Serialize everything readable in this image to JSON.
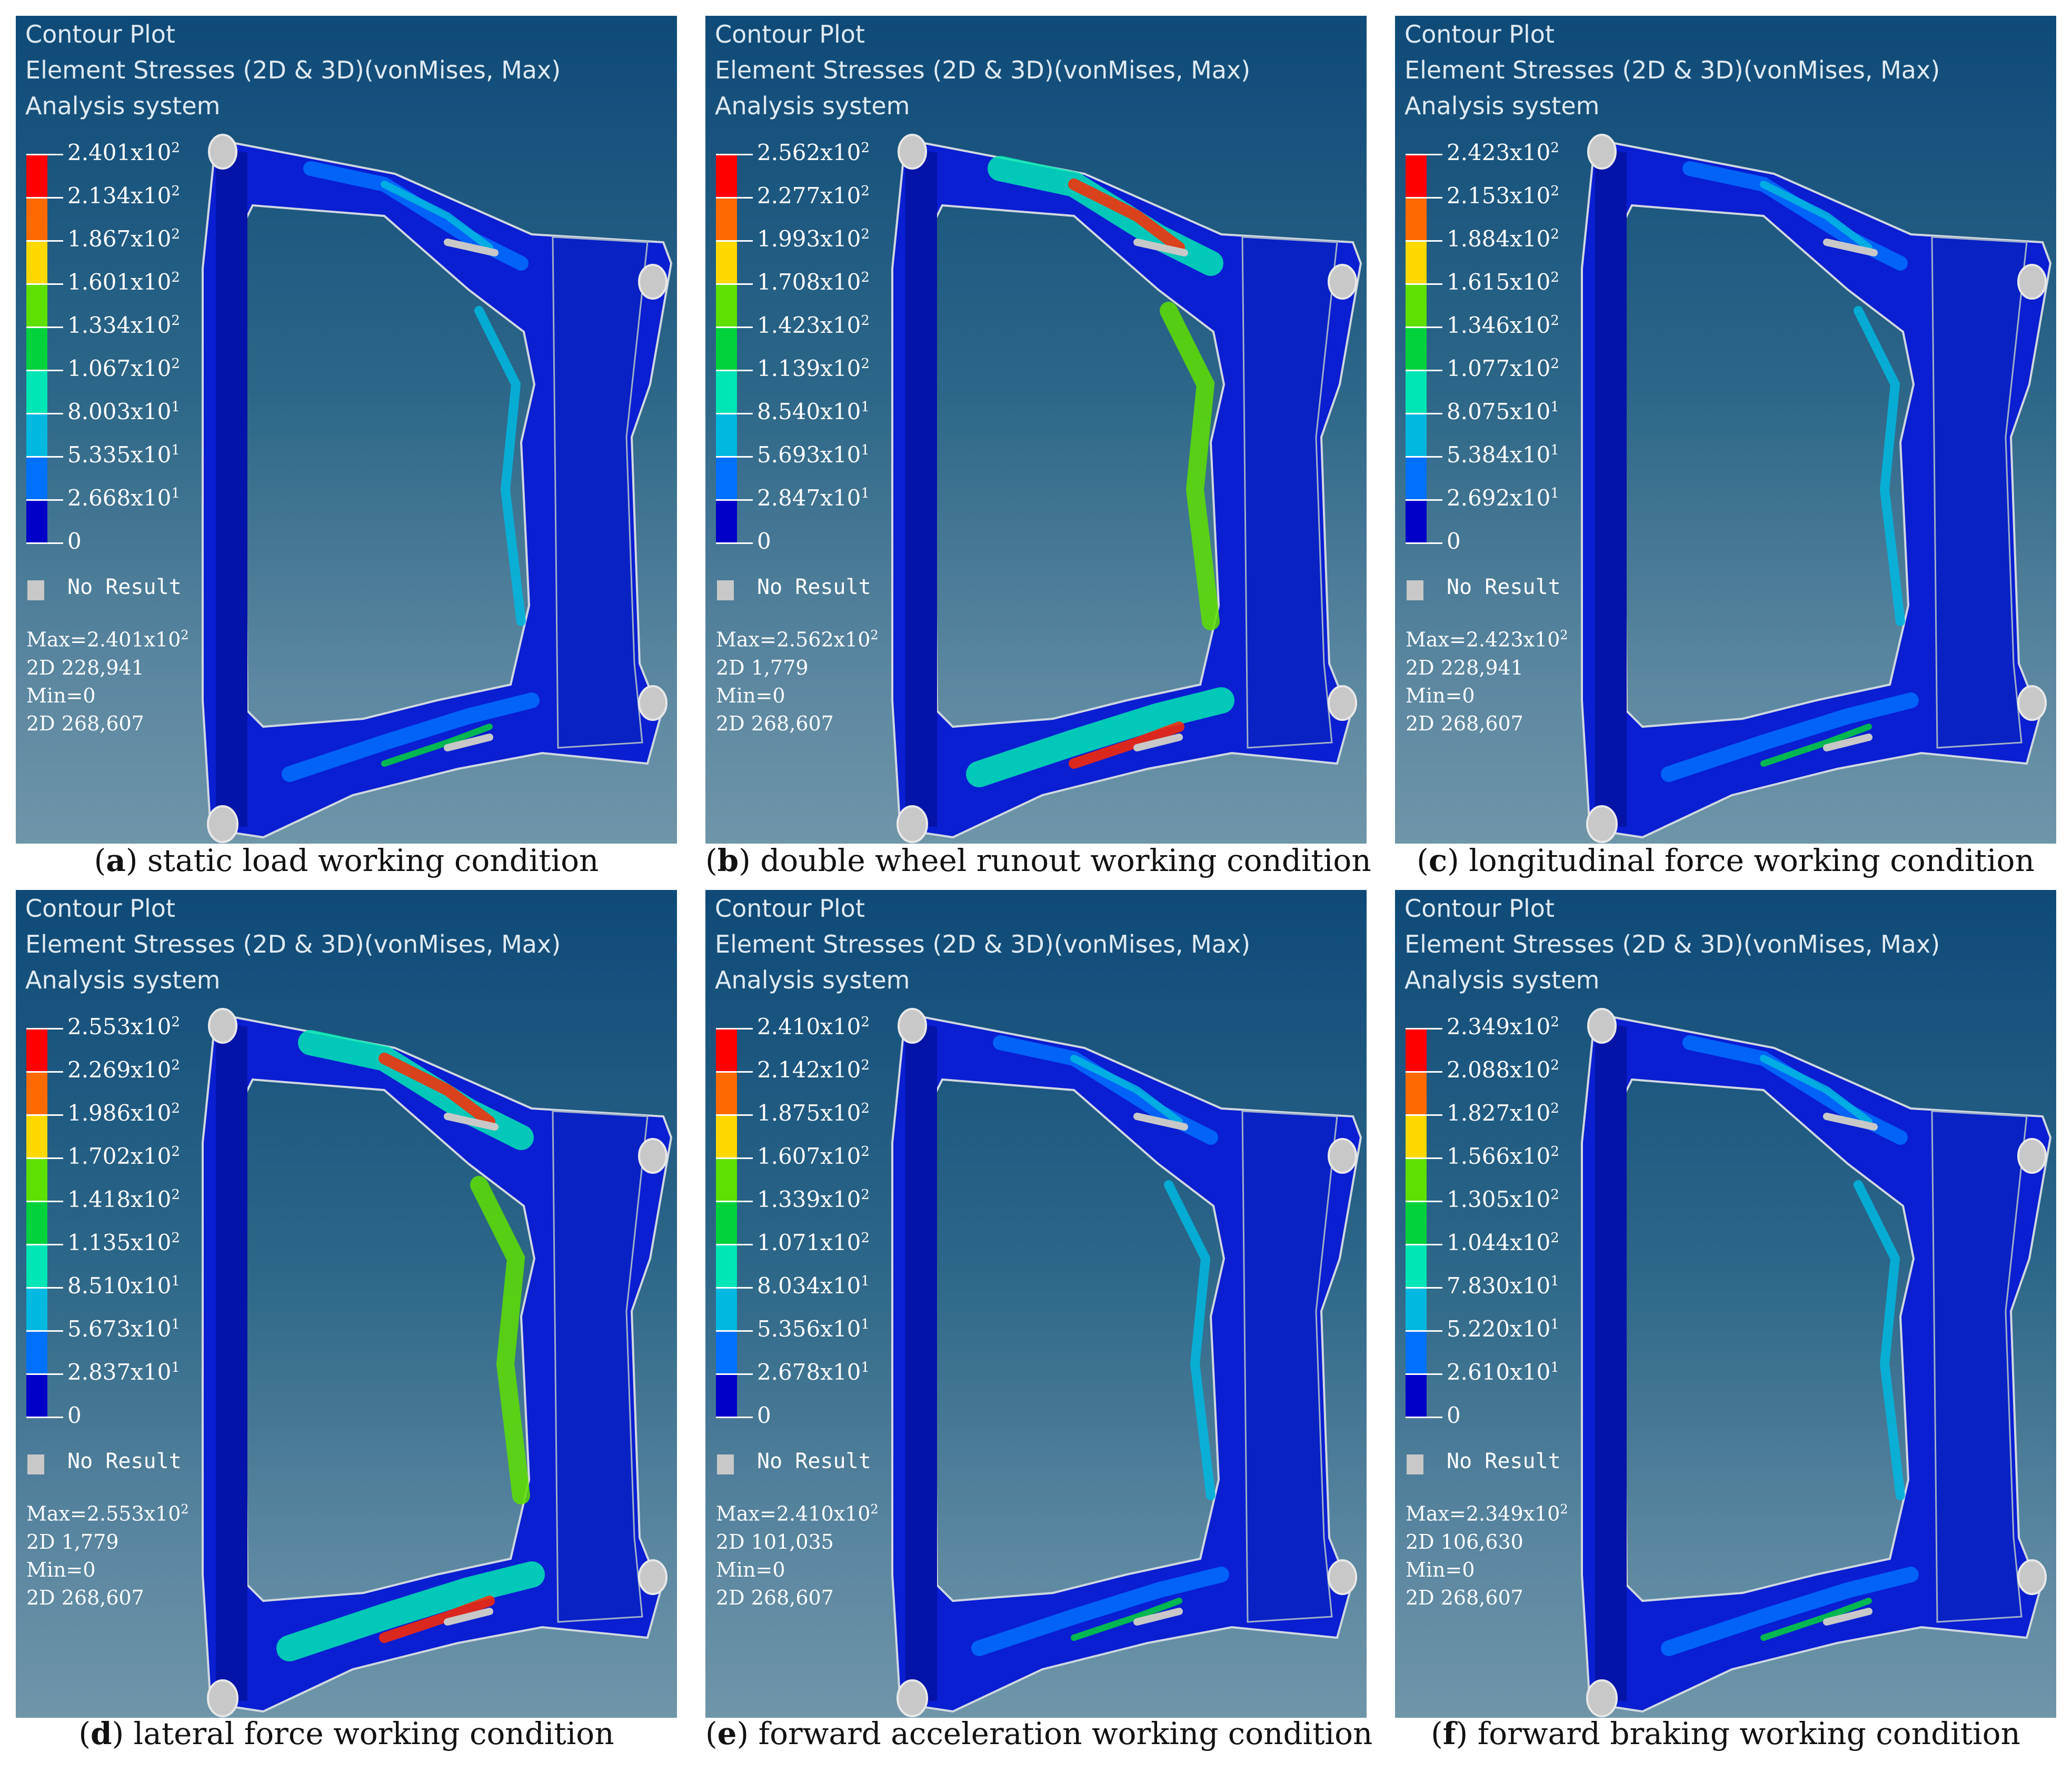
{
  "panels": [
    {
      "title": "Contour Plot",
      "subtitle": "Element Stresses (2D & 3D)(vonMises, Max)",
      "system": "Analysis system",
      "legend": [
        "2.401",
        "2.134",
        "1.867",
        "1.601",
        "1.334",
        "1.067",
        "8.003",
        "5.335",
        "2.668",
        "0"
      ],
      "legend_exp": [
        "2",
        "2",
        "2",
        "2",
        "2",
        "2",
        "1",
        "1",
        "1",
        ""
      ],
      "no_result": "No Result",
      "max_text": "Max=2.401x10",
      "max_exp": "2",
      "max_elem": "2D 228,941",
      "min_text": "Min=0",
      "min_elem": "2D 268,607",
      "caption_letter": "a",
      "caption_text": " static load working condition",
      "hotspot": "low"
    },
    {
      "title": "Contour Plot",
      "subtitle": "Element Stresses (2D & 3D)(vonMises, Max)",
      "system": "Analysis system",
      "legend": [
        "2.562",
        "2.277",
        "1.993",
        "1.708",
        "1.423",
        "1.139",
        "8.540",
        "5.693",
        "2.847",
        "0"
      ],
      "legend_exp": [
        "2",
        "2",
        "2",
        "2",
        "2",
        "2",
        "1",
        "1",
        "1",
        ""
      ],
      "no_result": "No Result",
      "max_text": "Max=2.562x10",
      "max_exp": "2",
      "max_elem": "2D 1,779",
      "min_text": "Min=0",
      "min_elem": "2D 268,607",
      "caption_letter": "b",
      "caption_text": " double wheel runout working condition",
      "hotspot": "high"
    },
    {
      "title": "Contour Plot",
      "subtitle": "Element Stresses (2D & 3D)(vonMises, Max)",
      "system": "Analysis system",
      "legend": [
        "2.423",
        "2.153",
        "1.884",
        "1.615",
        "1.346",
        "1.077",
        "8.075",
        "5.384",
        "2.692",
        "0"
      ],
      "legend_exp": [
        "2",
        "2",
        "2",
        "2",
        "2",
        "2",
        "1",
        "1",
        "1",
        ""
      ],
      "no_result": "No Result",
      "max_text": "Max=2.423x10",
      "max_exp": "2",
      "max_elem": "2D 228,941",
      "min_text": "Min=0",
      "min_elem": "2D 268,607",
      "caption_letter": "c",
      "caption_text": " longitudinal force working condition",
      "hotspot": "low"
    },
    {
      "title": "Contour Plot",
      "subtitle": "Element Stresses (2D & 3D)(vonMises, Max)",
      "system": "Analysis system",
      "legend": [
        "2.553",
        "2.269",
        "1.986",
        "1.702",
        "1.418",
        "1.135",
        "8.510",
        "5.673",
        "2.837",
        "0"
      ],
      "legend_exp": [
        "2",
        "2",
        "2",
        "2",
        "2",
        "2",
        "1",
        "1",
        "1",
        ""
      ],
      "no_result": "No Result",
      "max_text": "Max=2.553x10",
      "max_exp": "2",
      "max_elem": "2D 1,779",
      "min_text": "Min=0",
      "min_elem": "2D 268,607",
      "caption_letter": "d",
      "caption_text": " lateral force working condition",
      "hotspot": "high"
    },
    {
      "title": "Contour Plot",
      "subtitle": "Element Stresses (2D & 3D)(vonMises, Max)",
      "system": "Analysis system",
      "legend": [
        "2.410",
        "2.142",
        "1.875",
        "1.607",
        "1.339",
        "1.071",
        "8.034",
        "5.356",
        "2.678",
        "0"
      ],
      "legend_exp": [
        "2",
        "2",
        "2",
        "2",
        "2",
        "2",
        "1",
        "1",
        "1",
        ""
      ],
      "no_result": "No Result",
      "max_text": "Max=2.410x10",
      "max_exp": "2",
      "max_elem": "2D 101,035",
      "min_text": "Min=0",
      "min_elem": "2D 268,607",
      "caption_letter": "e",
      "caption_text": " forward acceleration working condition",
      "hotspot": "low"
    },
    {
      "title": "Contour Plot",
      "subtitle": "Element Stresses (2D & 3D)(vonMises, Max)",
      "system": "Analysis system",
      "legend": [
        "2.349",
        "2.088",
        "1.827",
        "1.566",
        "1.305",
        "1.044",
        "7.830",
        "5.220",
        "2.610",
        "0"
      ],
      "legend_exp": [
        "2",
        "2",
        "2",
        "2",
        "2",
        "2",
        "1",
        "1",
        "1",
        ""
      ],
      "no_result": "No Result",
      "max_text": "Max=2.349x10",
      "max_exp": "2",
      "max_elem": "2D 106,630",
      "min_text": "Min=0",
      "min_elem": "2D 268,607",
      "caption_letter": "f",
      "caption_text": " forward braking working condition",
      "hotspot": "low"
    }
  ],
  "legend_colors": [
    "#ff0000",
    "#ff6a00",
    "#ffd800",
    "#5ee000",
    "#00d23c",
    "#00e6b4",
    "#00b8e0",
    "#0070ff",
    "#0000c8"
  ]
}
